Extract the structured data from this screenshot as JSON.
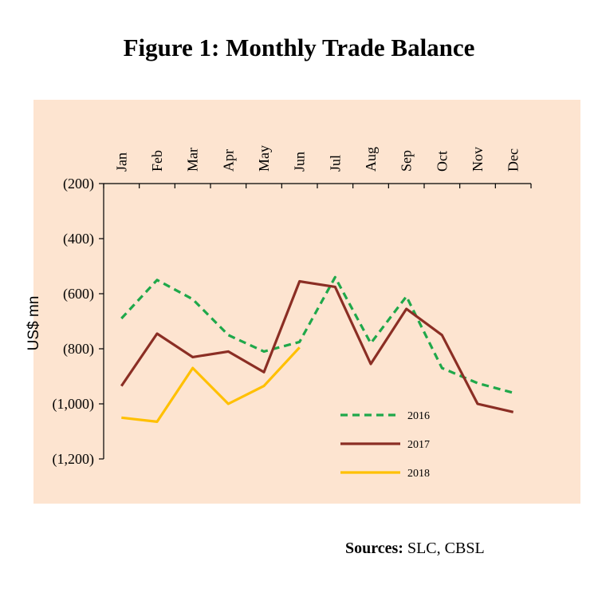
{
  "title": "Figure 1: Monthly Trade Balance",
  "sources": {
    "label": "Sources:",
    "text": "SLC, CBSL"
  },
  "chart_data": {
    "type": "line",
    "title": "Figure 1: Monthly Trade Balance",
    "xlabel": "",
    "ylabel": "US$ mn",
    "categories": [
      "Jan",
      "Feb",
      "Mar",
      "Apr",
      "May",
      "Jun",
      "Jul",
      "Aug",
      "Sep",
      "Oct",
      "Nov",
      "Dec"
    ],
    "ylim": [
      -1200,
      -200
    ],
    "yticks": [
      -200,
      -400,
      -600,
      -800,
      -1000,
      -1200
    ],
    "ytick_labels": [
      "(200)",
      "(400)",
      "(600)",
      "(800)",
      "(1,000)",
      "(1,200)"
    ],
    "x_axis_position": "top",
    "legend_position": "bottom-right",
    "series": [
      {
        "name": "2016",
        "color": "#1fa84a",
        "style": "dashed",
        "values": [
          -690,
          -550,
          -620,
          -750,
          -810,
          -775,
          -540,
          -780,
          -610,
          -870,
          -925,
          -960
        ]
      },
      {
        "name": "2017",
        "color": "#8b2e24",
        "style": "solid",
        "values": [
          -935,
          -745,
          -830,
          -810,
          -885,
          -555,
          -575,
          -855,
          -655,
          -750,
          -1000,
          -1030
        ]
      },
      {
        "name": "2018",
        "color": "#ffc000",
        "style": "solid",
        "values": [
          -1050,
          -1065,
          -870,
          -1000,
          -935,
          -795,
          null,
          null,
          null,
          null,
          null,
          null
        ]
      }
    ]
  }
}
